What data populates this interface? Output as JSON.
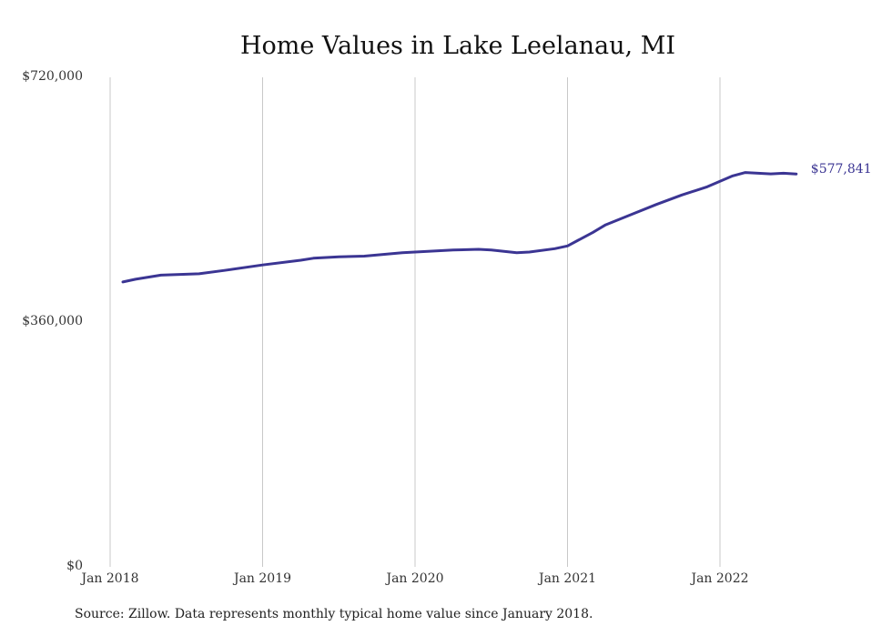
{
  "chart_data": {
    "type": "line",
    "title": "Home Values in Lake Leelanau, MI",
    "xlabel": "",
    "ylabel": "",
    "x_ticks": [
      "Jan 2018",
      "Jan 2019",
      "Jan 2020",
      "Jan 2021",
      "Jan 2022"
    ],
    "y_ticks": [
      "$0",
      "$360,000",
      "$720,000"
    ],
    "ylim": [
      0,
      720000
    ],
    "grid": "vertical",
    "end_label": "$577,841",
    "series": [
      {
        "color": "#3b3593",
        "points": [
          {
            "x": "2018-02",
            "y": 419000
          },
          {
            "x": "2018-03",
            "y": 423000
          },
          {
            "x": "2018-05",
            "y": 429000
          },
          {
            "x": "2018-08",
            "y": 431000
          },
          {
            "x": "2018-10",
            "y": 436000
          },
          {
            "x": "2019-01",
            "y": 444000
          },
          {
            "x": "2019-04",
            "y": 451000
          },
          {
            "x": "2019-05",
            "y": 454000
          },
          {
            "x": "2019-07",
            "y": 456000
          },
          {
            "x": "2019-09",
            "y": 457000
          },
          {
            "x": "2019-12",
            "y": 462000
          },
          {
            "x": "2020-02",
            "y": 464000
          },
          {
            "x": "2020-04",
            "y": 466000
          },
          {
            "x": "2020-06",
            "y": 467000
          },
          {
            "x": "2020-07",
            "y": 466000
          },
          {
            "x": "2020-09",
            "y": 462000
          },
          {
            "x": "2020-10",
            "y": 463000
          },
          {
            "x": "2020-12",
            "y": 468000
          },
          {
            "x": "2021-01",
            "y": 472000
          },
          {
            "x": "2021-03",
            "y": 492000
          },
          {
            "x": "2021-04",
            "y": 503000
          },
          {
            "x": "2021-06",
            "y": 518000
          },
          {
            "x": "2021-08",
            "y": 533000
          },
          {
            "x": "2021-10",
            "y": 547000
          },
          {
            "x": "2021-12",
            "y": 559000
          },
          {
            "x": "2022-02",
            "y": 575000
          },
          {
            "x": "2022-03",
            "y": 580000
          },
          {
            "x": "2022-04",
            "y": 579000
          },
          {
            "x": "2022-05",
            "y": 578000
          },
          {
            "x": "2022-06",
            "y": 579000
          },
          {
            "x": "2022-07",
            "y": 577841
          }
        ]
      }
    ]
  },
  "footer": {
    "source": "Source: Zillow. Data represents monthly typical home value since January 2018."
  }
}
